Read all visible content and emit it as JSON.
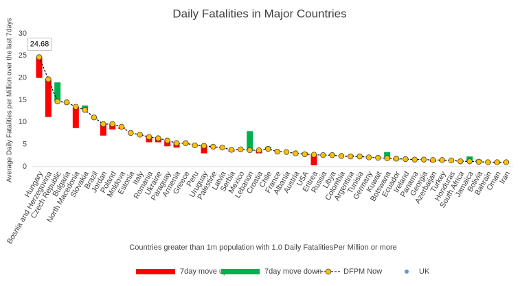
{
  "chart_data": {
    "type": "line-updown",
    "title": "Daily Fatalities in  Major Countries",
    "y_label": "Average Daily Fatalities per Million over the last 7days",
    "x_label": "Countries greater than 1m population with 1.0 Daily FatalitiesPer Million or more",
    "categories": [
      "Hungary",
      "Bosnia and Herzegovina",
      "Czech Republic",
      "Bulgaria",
      "North Macedonia",
      "Slovakia",
      "Brazil",
      "Jordan",
      "Poland",
      "Moldova",
      "Estonia",
      "Italy",
      "Romania",
      "Ukraine",
      "Paraguay",
      "Armenia",
      "Greece",
      "Peru",
      "Uruguay",
      "Palestine",
      "Latvia",
      "Serbia",
      "Mexico",
      "Lebanon",
      "Croatia",
      "Chile",
      "France",
      "Albania",
      "Austria",
      "USA",
      "Eritrea",
      "Russia",
      "Libya",
      "Colombia",
      "Argentina",
      "Tunisia",
      "Germany",
      "Kuwait",
      "Botswana",
      "Ecuador",
      "Ireland",
      "Panama",
      "Georgia",
      "Azerbaijan",
      "Turkey",
      "Honduras",
      "South Africa",
      "Jamaica",
      "Bolivia",
      "Bahrain",
      "Oman",
      "Iran"
    ],
    "previous": [
      20,
      11.2,
      19,
      14.4,
      8.7,
      13.8,
      11,
      7,
      8.4,
      8.5,
      7.5,
      7.1,
      5.5,
      5.5,
      4.6,
      4.3,
      5.2,
      4.8,
      3,
      4.5,
      4.3,
      3.4,
      3.9,
      8,
      3,
      4.5,
      3.4,
      3.3,
      3,
      3.2,
      0.3,
      2.6,
      2.9,
      2.4,
      2.6,
      2.3,
      2.1,
      2,
      3.3,
      1.5,
      1.7,
      1.6,
      1.6,
      1.1,
      1.2,
      1.4,
      1.4,
      2.3,
      1.6,
      1,
      0.7,
      1
    ],
    "series": [
      {
        "name": "DFPM Now",
        "color": "#ffc000",
        "values": [
          24.68,
          19.7,
          14.7,
          14.5,
          13.5,
          12.8,
          11.1,
          9.6,
          9.6,
          9,
          7.6,
          7.2,
          6.7,
          6.4,
          5.9,
          5.3,
          5.3,
          4.8,
          4.7,
          4.5,
          4.3,
          3.8,
          3.9,
          3.7,
          3.7,
          4,
          3.4,
          3.3,
          3,
          2.8,
          2.7,
          2.6,
          2.6,
          2.4,
          2.3,
          2.3,
          2.1,
          2,
          1.9,
          1.8,
          1.7,
          1.6,
          1.6,
          1.5,
          1.5,
          1.4,
          1.2,
          1.2,
          1.1,
          1,
          1,
          1
        ]
      },
      {
        "name": "UK",
        "color": "#5b9bd5"
      }
    ],
    "up_label": "7day move up",
    "up_color": "#ff0000",
    "down_label": "7day move down",
    "down_color": "#00b050",
    "data_labels": [
      0
    ],
    "ylim": [
      0,
      30
    ],
    "yticks": [
      0,
      5,
      10,
      15,
      20,
      25,
      30
    ]
  }
}
